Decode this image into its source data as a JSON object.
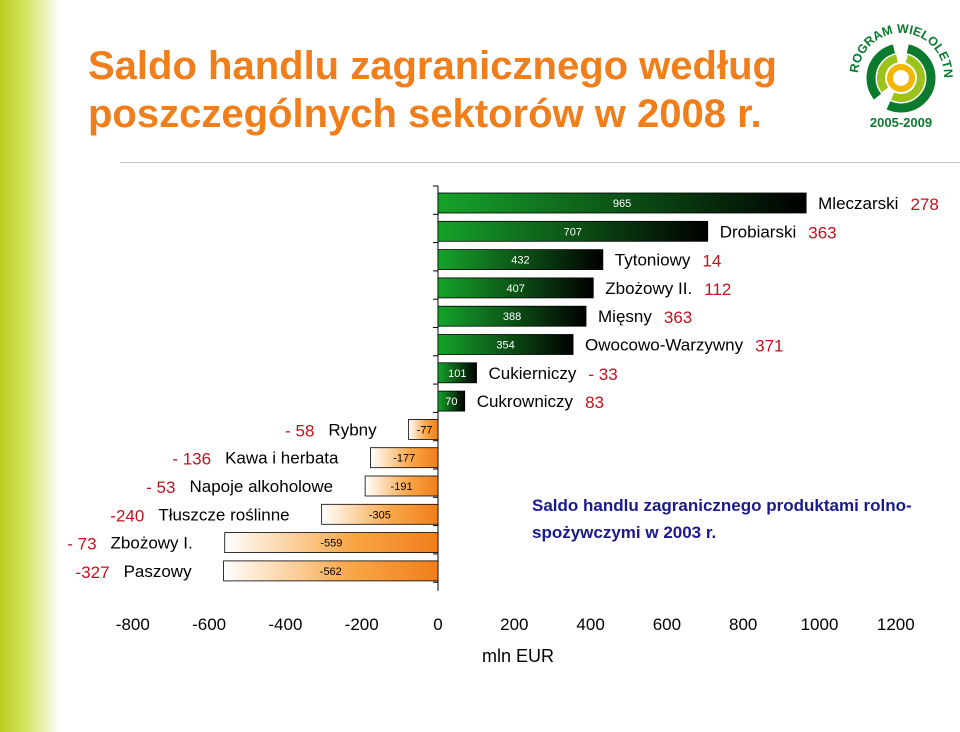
{
  "title": "Saldo handlu zagranicznego według poszczególnych sektorów w 2008 r.",
  "logo": {
    "arc_text": "PROGRAM WIELOLETNI",
    "years": "2005-2009",
    "colors": [
      "#0a7a2e",
      "#9bc31c",
      "#f2b800"
    ]
  },
  "note": "Saldo handlu zagranicznego produktami rolno-spożywczymi w 2003 r.",
  "chart_data": {
    "type": "bar",
    "orientation": "horizontal",
    "xlabel": "mln EUR",
    "xlim": [
      -800,
      1200
    ],
    "xticks": [
      "-800",
      "-600",
      "-400",
      "-200",
      "0",
      "200",
      "400",
      "600",
      "800",
      "1000",
      "1200"
    ],
    "colors": {
      "positive": "#0b4a14",
      "negative": "#f58a0a",
      "label_2003": "#c1121f",
      "category": "#000000"
    },
    "sectors": [
      {
        "name": "Mleczarski",
        "value_2008": 965,
        "value_2003": "278"
      },
      {
        "name": "Drobiarski",
        "value_2008": 707,
        "value_2003": "363"
      },
      {
        "name": "Tytoniowy",
        "value_2008": 432,
        "value_2003": "14"
      },
      {
        "name": "Zbożowy II.",
        "value_2008": 407,
        "value_2003": "112"
      },
      {
        "name": "Mięsny",
        "value_2008": 388,
        "value_2003": "363"
      },
      {
        "name": "Owocowo-Warzywny",
        "value_2008": 354,
        "value_2003": "371"
      },
      {
        "name": "Cukierniczy",
        "value_2008": 101,
        "value_2003": "- 33"
      },
      {
        "name": "Cukrowniczy",
        "value_2008": 70,
        "value_2003": "83"
      },
      {
        "name": "Rybny",
        "value_2008": -77,
        "value_2003": "- 58"
      },
      {
        "name": "Kawa i herbata",
        "value_2008": -177,
        "value_2003": "- 136"
      },
      {
        "name": "Napoje alkoholowe",
        "value_2008": -191,
        "value_2003": "- 53"
      },
      {
        "name": "Tłuszcze roślinne",
        "value_2008": -305,
        "value_2003": "-240"
      },
      {
        "name": "Zbożowy I.",
        "value_2008": -559,
        "value_2003": "- 73"
      },
      {
        "name": "Paszowy",
        "value_2008": -562,
        "value_2003": "-327"
      }
    ]
  }
}
